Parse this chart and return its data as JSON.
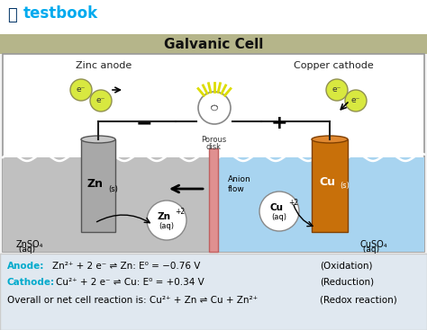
{
  "title": "Galvanic Cell",
  "bg_color": "#f2f2f2",
  "header_color": "#b5b58a",
  "zinc_sol_color": "#c0c0c0",
  "copper_sol_color": "#a8d4f0",
  "zinc_color": "#a8a8a8",
  "copper_color": "#c8700a",
  "porous_color": "#e09090",
  "wire_color": "#222222",
  "ecircle_color": "#d8e840",
  "ecircle_edge": "#909050",
  "bottom_bg": "#e0e8f0",
  "anode_color": "#00aacc",
  "cathode_color": "#00aacc",
  "water_wave_color": "#ffffff",
  "diag_border": "#999999",
  "zn_text": "Zn",
  "cu_text": "Cu",
  "znso4_text": "ZnSO₄ (aq)",
  "cuso4_text": "CuSO₄ (aq)",
  "zn_ion_text1": "Zn",
  "zn_ion_text2": "+2",
  "zn_ion_text3": "(aq)",
  "cu_ion_text1": "Cu",
  "cu_ion_text2": "+2",
  "cu_ion_text3": "(aq)",
  "porous_label1": "Porous",
  "porous_label2": "disk",
  "anion_label": "Anion\nflow",
  "minus_sign": "−",
  "plus_sign": "+",
  "zinc_anode_label": "Zinc anode",
  "copper_cathode_label": "Copper cathode",
  "anode_line": "Zn²⁺ + 2 e⁻ ⇌ Zn: E° = −0.76 V",
  "cathode_line": "Cu²⁺ + 2 e⁻ ⇌ Cu: E° = +0.34 V",
  "overall_line": "Overall or net cell reaction is: Cu²⁺ + Zn ⇌ Cu + Zn²⁺",
  "oxidation_label": "(Oxidation)",
  "reduction_label": "(Reduction)",
  "redox_label": "(Redox reaction)"
}
